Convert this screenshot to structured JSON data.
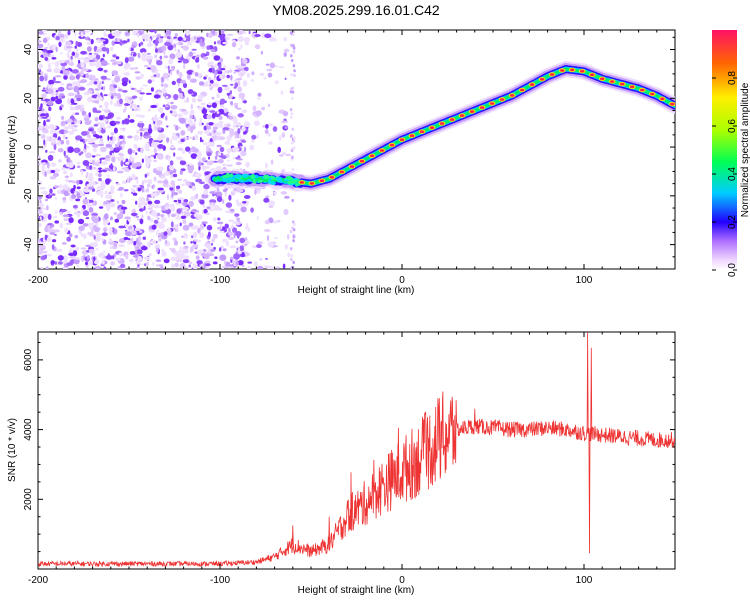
{
  "chart_data": [
    {
      "type": "heatmap",
      "title": "YM08.2025.299.16.01.C42",
      "xlabel": "Height of straight line (km)",
      "ylabel": "Frequency (Hz)",
      "xlim": [
        -200,
        150
      ],
      "ylim": [
        -50,
        48
      ],
      "x_ticks": [
        -200,
        -100,
        0,
        100
      ],
      "y_ticks": [
        -40,
        -20,
        0,
        20,
        40
      ],
      "colorbar": {
        "label": "Normalized spectral amplitude",
        "range": [
          0,
          1
        ],
        "ticks": [
          "0.0",
          "0.2",
          "0.4",
          "0.6",
          "0.8"
        ]
      },
      "ridge": {
        "x": [
          -100,
          -80,
          -60,
          -50,
          -40,
          -30,
          -20,
          -10,
          0,
          10,
          20,
          30,
          40,
          50,
          60,
          70,
          80,
          90,
          100,
          110,
          120,
          130,
          140,
          150
        ],
        "y": [
          -13,
          -13,
          -14,
          -15,
          -13,
          -9,
          -5,
          -1,
          3,
          6,
          9,
          12,
          15,
          18,
          21,
          25,
          29,
          32,
          31,
          28,
          26,
          24,
          21,
          17
        ]
      },
      "noise_region_x": [
        -200,
        -60
      ]
    },
    {
      "type": "line",
      "xlabel": "Height of straight line (km)",
      "ylabel": "SNR (10 * v/v)",
      "xlim": [
        -200,
        150
      ],
      "ylim": [
        0,
        6800
      ],
      "x_ticks": [
        -200,
        -100,
        0,
        100
      ],
      "y_ticks": [
        2000,
        4000,
        6000
      ],
      "series": [
        {
          "name": "SNR",
          "color": "#ee3333",
          "envelope": {
            "x": [
              -200,
              -100,
              -80,
              -70,
              -60,
              -50,
              -40,
              -30,
              -20,
              -10,
              0,
              10,
              20,
              30,
              40,
              50,
              60,
              70,
              80,
              90,
              100,
              110,
              120,
              130,
              140,
              150
            ],
            "y": [
              150,
              150,
              200,
              350,
              700,
              500,
              700,
              1500,
              1900,
              2400,
              2800,
              3200,
              3700,
              4000,
              4100,
              4050,
              4000,
              4000,
              4050,
              4000,
              3900,
              3850,
              3800,
              3750,
              3700,
              3700
            ]
          },
          "spikes": [
            {
              "x": -60,
              "y": 1250
            },
            {
              "x": -40,
              "y": 1500
            },
            {
              "x": -2,
              "y": 4050
            },
            {
              "x": 40,
              "y": 4600
            },
            {
              "x": 102,
              "y": 6800
            },
            {
              "x": 104,
              "y": 6350
            },
            {
              "x": 103,
              "y": 450
            }
          ]
        }
      ]
    }
  ]
}
